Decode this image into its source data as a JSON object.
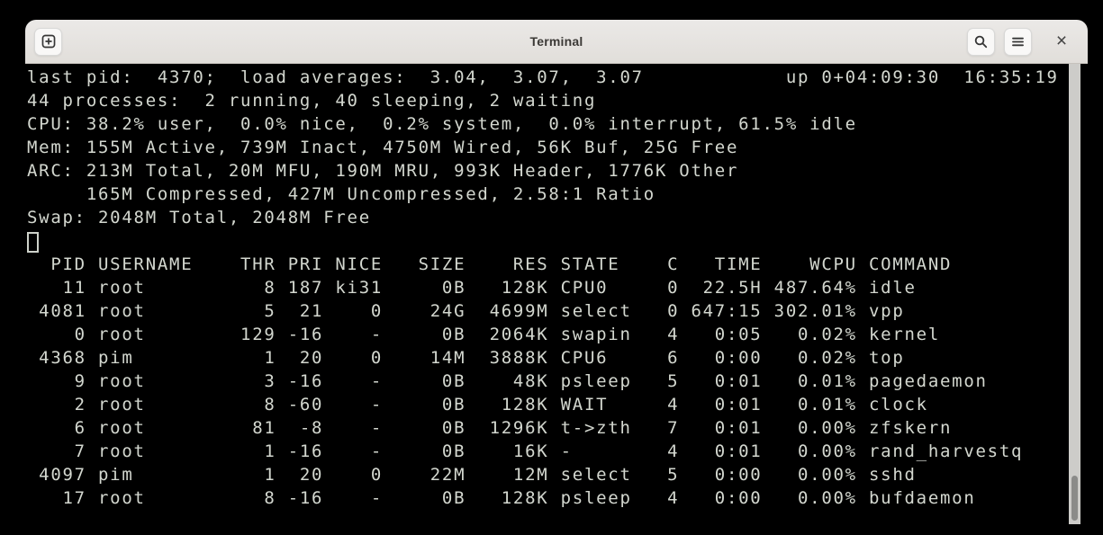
{
  "window": {
    "title": "Terminal",
    "icons": {
      "close": "×"
    }
  },
  "colors": {
    "terminal_fg": "#d3d7cf",
    "terminal_bg": "#000000",
    "titlebar_bg": "#e7e5e2",
    "scrollbar_track": "#cdccc9",
    "scrollbar_thumb": "#8b8b89"
  },
  "terminal": {
    "columns_width": 87,
    "summary": {
      "line1_left": "last pid:  4370;  load averages:  3.04,  3.07,  3.07",
      "line1_right": "up 0+04:09:30  16:35:19",
      "lines": [
        "44 processes:  2 running, 40 sleeping, 2 waiting",
        "CPU: 38.2% user,  0.0% nice,  0.2% system,  0.0% interrupt, 61.5% idle",
        "Mem: 155M Active, 739M Inact, 4750M Wired, 56K Buf, 25G Free",
        "ARC: 213M Total, 20M MFU, 190M MRU, 993K Header, 1776K Other",
        "     165M Compressed, 427M Uncompressed, 2.58:1 Ratio",
        "Swap: 2048M Total, 2048M Free"
      ]
    },
    "process_table": {
      "columns": [
        "PID",
        "USERNAME",
        "THR",
        "PRI",
        "NICE",
        "SIZE",
        "RES",
        "STATE",
        "C",
        "TIME",
        "WCPU",
        "COMMAND"
      ],
      "rows": [
        [
          "11",
          "root",
          "8",
          "187",
          "ki31",
          "0B",
          "128K",
          "CPU0",
          "0",
          "22.5H",
          "487.64%",
          "idle"
        ],
        [
          "4081",
          "root",
          "5",
          "21",
          "0",
          "24G",
          "4699M",
          "select",
          "0",
          "647:15",
          "302.01%",
          "vpp"
        ],
        [
          "0",
          "root",
          "129",
          "-16",
          "-",
          "0B",
          "2064K",
          "swapin",
          "4",
          "0:05",
          "0.02%",
          "kernel"
        ],
        [
          "4368",
          "pim",
          "1",
          "20",
          "0",
          "14M",
          "3888K",
          "CPU6",
          "6",
          "0:00",
          "0.02%",
          "top"
        ],
        [
          "9",
          "root",
          "3",
          "-16",
          "-",
          "0B",
          "48K",
          "psleep",
          "5",
          "0:01",
          "0.01%",
          "pagedaemon"
        ],
        [
          "2",
          "root",
          "8",
          "-60",
          "-",
          "0B",
          "128K",
          "WAIT",
          "4",
          "0:01",
          "0.01%",
          "clock"
        ],
        [
          "6",
          "root",
          "81",
          "-8",
          "-",
          "0B",
          "1296K",
          "t->zth",
          "7",
          "0:01",
          "0.00%",
          "zfskern"
        ],
        [
          "7",
          "root",
          "1",
          "-16",
          "-",
          "0B",
          "16K",
          "-",
          "4",
          "0:01",
          "0.00%",
          "rand_harvestq"
        ],
        [
          "4097",
          "pim",
          "1",
          "20",
          "0",
          "22M",
          "12M",
          "select",
          "5",
          "0:00",
          "0.00%",
          "sshd"
        ],
        [
          "17",
          "root",
          "8",
          "-16",
          "-",
          "0B",
          "128K",
          "psleep",
          "4",
          "0:00",
          "0.00%",
          "bufdaemon"
        ]
      ]
    }
  }
}
